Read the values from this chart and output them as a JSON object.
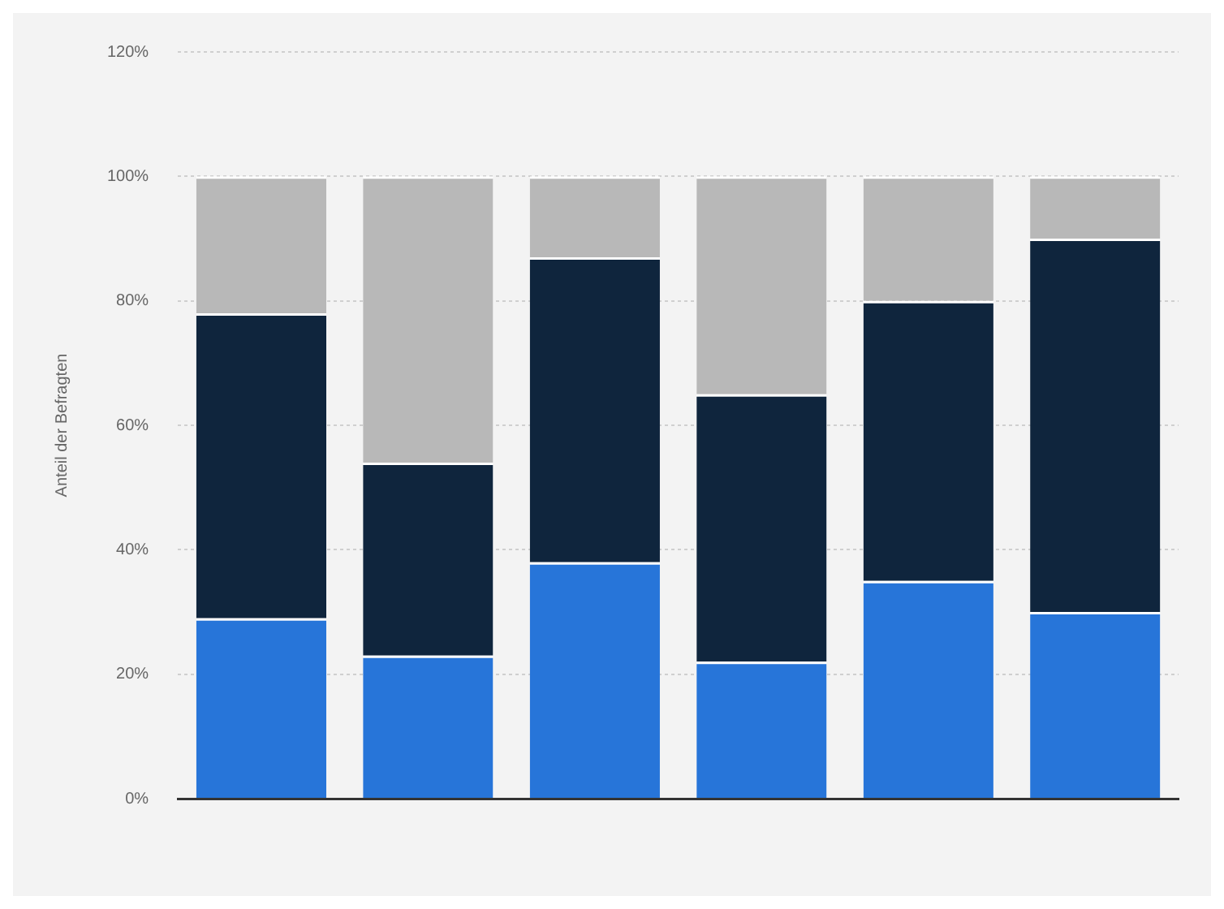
{
  "chart_data": {
    "type": "bar",
    "stacked": true,
    "ylabel": "Anteil der Befragten",
    "categories": [
      null,
      null,
      null,
      null,
      null,
      null
    ],
    "series": [
      {
        "color": "#2775d9",
        "values": [
          29,
          23,
          38,
          22,
          35,
          30
        ]
      },
      {
        "color": "#0f253d",
        "values": [
          49,
          31,
          49,
          43,
          45,
          60
        ]
      },
      {
        "color": "#b8b8b8",
        "values": [
          22,
          46,
          13,
          35,
          20,
          10
        ]
      }
    ],
    "ylim": [
      0,
      120
    ],
    "yticks": [
      {
        "value": 0,
        "label": "0%"
      },
      {
        "value": 20,
        "label": "20%"
      },
      {
        "value": 40,
        "label": "40%"
      },
      {
        "value": 60,
        "label": "60%"
      },
      {
        "value": 80,
        "label": "80%"
      },
      {
        "value": 100,
        "label": "100%"
      },
      {
        "value": 120,
        "label": "120%"
      }
    ],
    "grid": "y",
    "legend": false
  }
}
